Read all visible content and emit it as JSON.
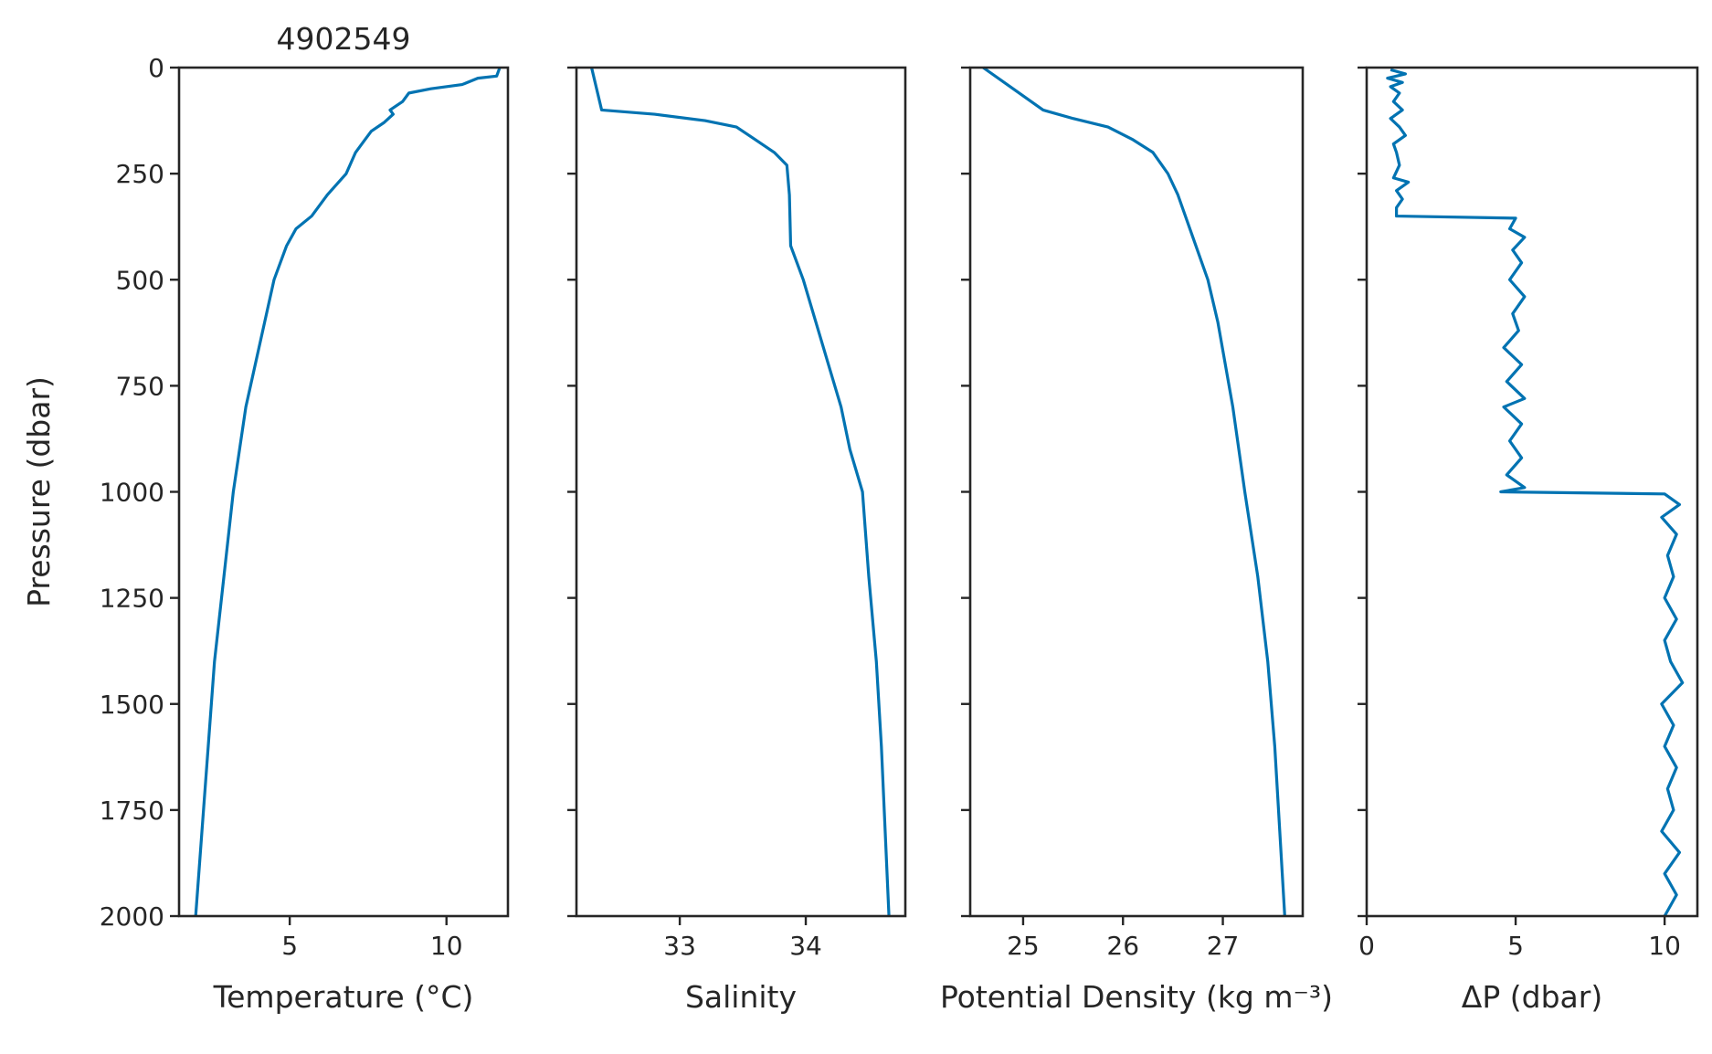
{
  "chart_data": [
    {
      "type": "line",
      "title": "4902549",
      "xlabel": "Temperature (°C)",
      "ylabel": "Pressure (dbar)",
      "color": "#0173b2",
      "x": [
        11.7,
        11.6,
        11.0,
        10.5,
        9.5,
        8.8,
        8.6,
        8.2,
        8.3,
        8.0,
        7.6,
        7.4,
        7.1,
        6.8,
        6.2,
        5.7,
        5.2,
        4.9,
        4.5,
        4.2,
        3.9,
        3.6,
        3.4,
        3.2,
        2.9,
        2.6,
        2.4,
        2.2,
        2.0
      ],
      "values": [
        0,
        20,
        25,
        40,
        50,
        60,
        80,
        100,
        110,
        130,
        150,
        170,
        200,
        250,
        300,
        350,
        380,
        420,
        500,
        600,
        700,
        800,
        900,
        1000,
        1200,
        1400,
        1600,
        1800,
        2000
      ],
      "xlim": [
        1.47,
        11.96
      ],
      "xticks": [
        5,
        10
      ],
      "ylim": [
        2000,
        0
      ],
      "yticks": [
        0,
        250,
        500,
        750,
        1000,
        1250,
        1500,
        1750,
        2000
      ],
      "ytick_labels": true
    },
    {
      "type": "line",
      "xlabel": "Salinity",
      "color": "#0173b2",
      "x": [
        32.3,
        32.38,
        32.8,
        33.2,
        33.45,
        33.6,
        33.75,
        33.85,
        33.87,
        33.88,
        33.98,
        34.08,
        34.18,
        34.28,
        34.35,
        34.45,
        34.5,
        34.56,
        34.6,
        34.63,
        34.66
      ],
      "values": [
        0,
        100,
        110,
        125,
        140,
        170,
        200,
        230,
        300,
        420,
        500,
        600,
        700,
        800,
        900,
        1000,
        1200,
        1400,
        1600,
        1800,
        2000
      ],
      "xlim": [
        32.18,
        34.79
      ],
      "xticks": [
        33,
        34
      ],
      "ylim": [
        2000,
        0
      ],
      "yticks": [
        0,
        250,
        500,
        750,
        1000,
        1250,
        1500,
        1750,
        2000
      ],
      "ytick_labels": false
    },
    {
      "type": "line",
      "xlabel": "Potential Density (kg m⁻³)",
      "color": "#0173b2",
      "x": [
        24.6,
        24.9,
        25.2,
        25.5,
        25.85,
        26.1,
        26.3,
        26.45,
        26.55,
        26.7,
        26.85,
        26.95,
        27.1,
        27.22,
        27.35,
        27.45,
        27.52,
        27.57,
        27.62
      ],
      "values": [
        0,
        50,
        100,
        120,
        140,
        170,
        200,
        250,
        300,
        400,
        500,
        600,
        800,
        1000,
        1200,
        1400,
        1600,
        1800,
        2000
      ],
      "xlim": [
        24.47,
        27.8
      ],
      "xticks": [
        25,
        26,
        27
      ],
      "ylim": [
        2000,
        0
      ],
      "yticks": [
        0,
        250,
        500,
        750,
        1000,
        1250,
        1500,
        1750,
        2000
      ],
      "ytick_labels": false
    },
    {
      "type": "line",
      "xlabel": "ΔP (dbar)",
      "color": "#0173b2",
      "x": [
        0.8,
        1.3,
        0.7,
        1.2,
        0.8,
        1.1,
        0.9,
        1.2,
        0.8,
        1.1,
        1.3,
        0.9,
        1.0,
        1.1,
        0.9,
        1.4,
        1.0,
        1.2,
        1.0,
        1.0,
        5.0,
        4.8,
        5.3,
        4.9,
        5.2,
        4.8,
        5.3,
        4.9,
        5.1,
        4.6,
        5.2,
        4.7,
        5.3,
        4.6,
        5.2,
        4.8,
        5.2,
        4.7,
        5.3,
        4.5,
        10.0,
        10.5,
        9.9,
        10.4,
        10.1,
        10.3,
        10.0,
        10.4,
        10.0,
        10.2,
        10.6,
        9.9,
        10.3,
        10.0,
        10.4,
        10.1,
        10.3,
        9.9,
        10.5,
        10.0,
        10.4,
        10.0
      ],
      "values": [
        5,
        15,
        25,
        35,
        45,
        60,
        80,
        100,
        120,
        140,
        160,
        180,
        200,
        230,
        260,
        270,
        290,
        310,
        330,
        350,
        355,
        380,
        400,
        430,
        460,
        500,
        540,
        580,
        620,
        660,
        700,
        740,
        780,
        800,
        840,
        880,
        920,
        960,
        990,
        1000,
        1005,
        1030,
        1060,
        1100,
        1150,
        1200,
        1250,
        1300,
        1350,
        1400,
        1450,
        1500,
        1550,
        1600,
        1650,
        1700,
        1750,
        1800,
        1850,
        1900,
        1950,
        2000
      ],
      "xlim": [
        0,
        11.1
      ],
      "xticks": [
        0,
        5,
        10
      ],
      "ylim": [
        2000,
        0
      ],
      "yticks": [
        0,
        250,
        500,
        750,
        1000,
        1250,
        1500,
        1750,
        2000
      ],
      "ytick_labels": false
    }
  ]
}
